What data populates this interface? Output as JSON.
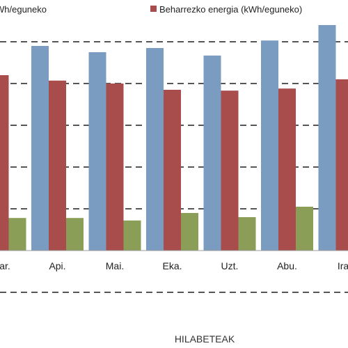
{
  "chart_data": {
    "type": "bar",
    "xlabel": "HILABETEAK",
    "categories": [
      "Mar.",
      "Api.",
      "Mai.",
      "Eka.",
      "Uzt.",
      "Abu.",
      "Ira."
    ],
    "category_labels_visible": [
      "ar.",
      "Api.",
      "Mai.",
      "Eka.",
      "Uzt.",
      "Abu.",
      "Ira."
    ],
    "legend": [
      {
        "label": "Wh/eguneko",
        "color": "#7a9cc0"
      },
      {
        "label": "Beharrezko energia (kWh/eguneko)",
        "color": "#a84c4c"
      }
    ],
    "series": [
      {
        "color": "#7a9cc0",
        "values": [
          null,
          4.9,
          4.75,
          4.85,
          4.67,
          5.03,
          5.4
        ]
      },
      {
        "name": "Beharrezko energia (kWh/eguneko)",
        "color": "#a84c4c",
        "values": [
          4.2,
          4.07,
          4.0,
          3.85,
          3.83,
          3.88,
          4.1
        ]
      },
      {
        "color": "#8b9e57",
        "values": [
          0.78,
          0.78,
          0.72,
          0.9,
          0.8,
          1.05,
          null
        ]
      }
    ],
    "ylim": [
      0,
      6
    ],
    "grid": true
  }
}
